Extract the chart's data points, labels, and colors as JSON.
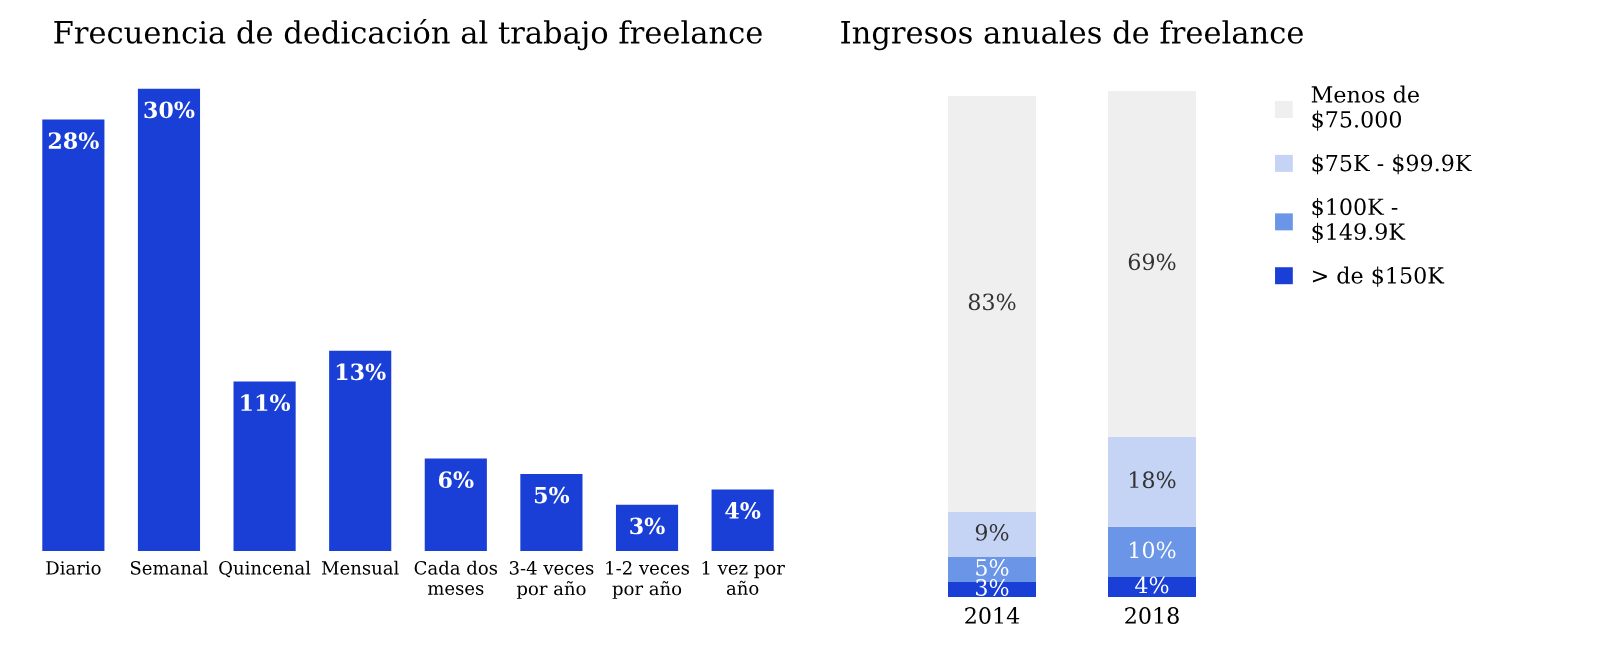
{
  "chart_data": [
    {
      "type": "bar",
      "title": "Frecuencia de dedicación al trabajo freelance",
      "categories": [
        "Diario",
        "Semanal",
        "Quincenal",
        "Mensual",
        "Cada dos\nmeses",
        "3-4 veces\npor año",
        "1-2 veces\npor año",
        "1 vez por\naño"
      ],
      "values": [
        28,
        30,
        11,
        13,
        6,
        5,
        3,
        4
      ],
      "color": "#1a3fd6",
      "data_labels": true,
      "value_labels": [
        "28%",
        "30%",
        "11%",
        "13%",
        "6%",
        "5%",
        "3%",
        "4%"
      ],
      "grid": false,
      "legend": false
    },
    {
      "type": "bar",
      "title": "Ingresos anuales de freelance",
      "categories": [
        "2014",
        "2018"
      ],
      "stacked": true,
      "legend": "right",
      "grid": false,
      "series": [
        {
          "name": "> de $150K",
          "color": "#1a3fd6",
          "values": [
            3,
            4
          ],
          "value_labels": [
            "3%",
            "4%"
          ]
        },
        {
          "name": "$100K -\n$149.9K",
          "color": "#6b96e8",
          "values": [
            5,
            10
          ],
          "value_labels": [
            "5%",
            "10%"
          ]
        },
        {
          "name": "$75K - $99.9K",
          "color": "#c5d3f5",
          "values": [
            9,
            18
          ],
          "value_labels": [
            "9%",
            "18%"
          ]
        },
        {
          "name": "Menos de\n$75.000",
          "color": "#efefef",
          "values": [
            83,
            69
          ],
          "value_labels": [
            "83%",
            "69%"
          ]
        }
      ]
    }
  ]
}
